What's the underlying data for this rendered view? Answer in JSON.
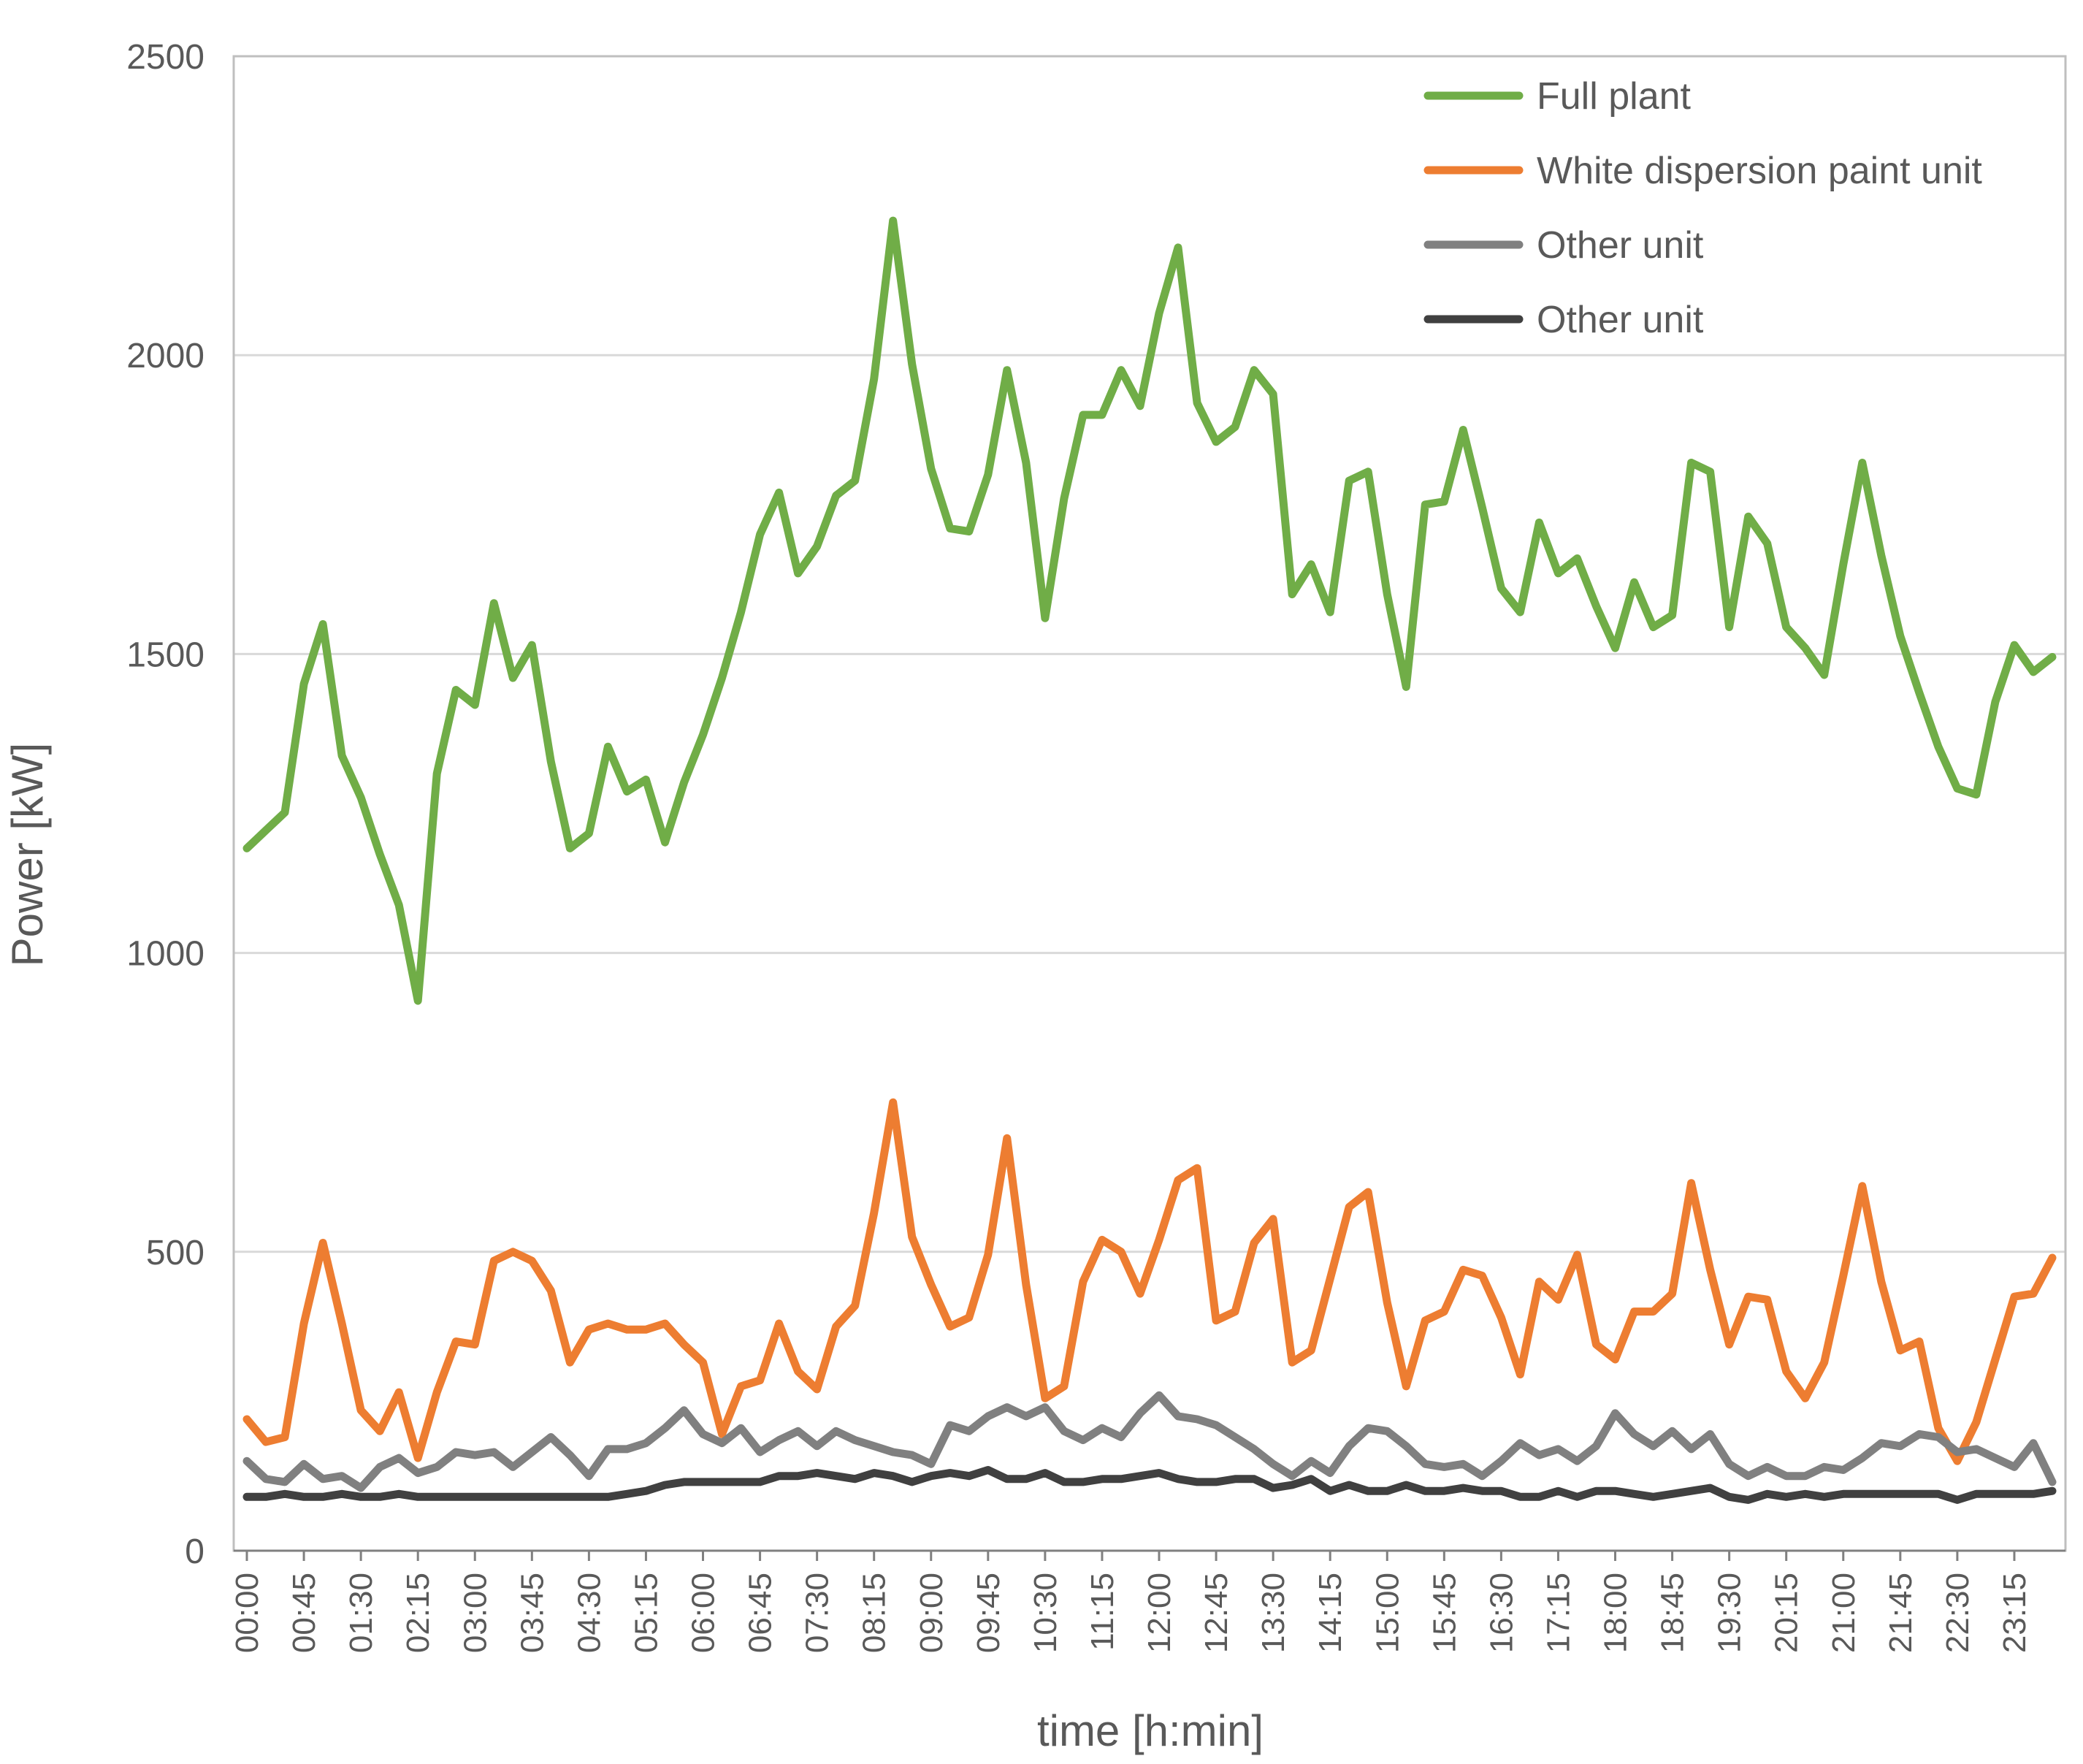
{
  "chart_data": {
    "type": "line",
    "title": "",
    "xlabel": "time [h:min]",
    "ylabel": "Power [kW]",
    "ylim": [
      0,
      2500
    ],
    "yticks": [
      0,
      500,
      1000,
      1500,
      2000,
      2500
    ],
    "grid": "horizontal",
    "legend_position": "top-right",
    "x_start": "00:00",
    "x_step_minutes": 15,
    "x_count": 96,
    "xtick_every": 3,
    "colors": {
      "Full plant": "#70AD47",
      "White dispersion paint unit": "#ED7D31",
      "Other unit (gray)": "#808080",
      "Other unit (dark)": "#404040",
      "grid": "#d9d9d9",
      "axis": "#808080",
      "text": "#595959"
    },
    "series": [
      {
        "name": "Full plant",
        "color": "#70AD47",
        "values": [
          1175,
          1205,
          1235,
          1450,
          1550,
          1330,
          1260,
          1165,
          1080,
          920,
          1300,
          1440,
          1415,
          1585,
          1460,
          1515,
          1320,
          1175,
          1200,
          1345,
          1270,
          1290,
          1185,
          1285,
          1365,
          1460,
          1570,
          1700,
          1770,
          1635,
          1680,
          1765,
          1790,
          1960,
          2225,
          1985,
          1810,
          1710,
          1705,
          1800,
          1975,
          1820,
          1560,
          1760,
          1900,
          1900,
          1975,
          1915,
          2070,
          2180,
          1920,
          1855,
          1880,
          1975,
          1935,
          1600,
          1650,
          1570,
          1790,
          1805,
          1600,
          1445,
          1750,
          1755,
          1875,
          1745,
          1610,
          1570,
          1720,
          1635,
          1660,
          1580,
          1510,
          1620,
          1545,
          1565,
          1820,
          1805,
          1545,
          1730,
          1685,
          1545,
          1510,
          1465,
          1650,
          1820,
          1665,
          1530,
          1435,
          1345,
          1275,
          1265,
          1420,
          1515,
          1470,
          1495
        ]
      },
      {
        "name": "White dispersion paint unit",
        "color": "#ED7D31",
        "values": [
          220,
          182,
          190,
          380,
          515,
          380,
          235,
          200,
          265,
          155,
          265,
          350,
          345,
          485,
          500,
          485,
          435,
          315,
          370,
          380,
          370,
          370,
          380,
          345,
          315,
          195,
          275,
          285,
          380,
          300,
          270,
          375,
          410,
          565,
          750,
          525,
          445,
          375,
          390,
          495,
          690,
          445,
          255,
          275,
          450,
          520,
          500,
          430,
          520,
          620,
          640,
          385,
          400,
          515,
          555,
          315,
          335,
          455,
          575,
          600,
          415,
          275,
          385,
          400,
          470,
          460,
          390,
          295,
          450,
          420,
          495,
          345,
          320,
          400,
          400,
          430,
          615,
          470,
          345,
          425,
          420,
          300,
          255,
          315,
          460,
          610,
          450,
          335,
          350,
          205,
          150,
          215,
          320,
          425,
          430,
          490
        ]
      },
      {
        "name": "Other unit",
        "color": "#808080",
        "values": [
          150,
          120,
          115,
          145,
          120,
          125,
          105,
          140,
          155,
          130,
          140,
          165,
          160,
          165,
          140,
          165,
          190,
          160,
          125,
          170,
          170,
          180,
          205,
          235,
          195,
          180,
          205,
          165,
          185,
          200,
          175,
          200,
          185,
          175,
          165,
          160,
          145,
          210,
          200,
          225,
          240,
          225,
          240,
          200,
          185,
          205,
          190,
          230,
          260,
          225,
          220,
          210,
          190,
          170,
          145,
          125,
          150,
          130,
          175,
          205,
          200,
          175,
          145,
          140,
          145,
          125,
          150,
          180,
          160,
          170,
          150,
          175,
          230,
          195,
          175,
          200,
          170,
          195,
          145,
          125,
          140,
          125,
          125,
          140,
          135,
          155,
          180,
          175,
          195,
          190,
          165,
          170,
          155,
          140,
          180,
          115
        ]
      },
      {
        "name": "Other unit",
        "color": "#404040",
        "values": [
          90,
          90,
          95,
          90,
          90,
          95,
          90,
          90,
          95,
          90,
          90,
          90,
          90,
          90,
          90,
          90,
          90,
          90,
          90,
          90,
          95,
          100,
          110,
          115,
          115,
          115,
          115,
          115,
          125,
          125,
          130,
          125,
          120,
          130,
          125,
          115,
          125,
          130,
          125,
          135,
          120,
          120,
          130,
          115,
          115,
          120,
          120,
          125,
          130,
          120,
          115,
          115,
          120,
          120,
          105,
          110,
          120,
          100,
          110,
          100,
          100,
          110,
          100,
          100,
          105,
          100,
          100,
          90,
          90,
          100,
          90,
          100,
          100,
          95,
          90,
          95,
          100,
          105,
          90,
          85,
          95,
          90,
          95,
          90,
          95,
          95,
          95,
          95,
          95,
          95,
          85,
          95,
          95,
          95,
          95,
          100
        ]
      }
    ]
  }
}
